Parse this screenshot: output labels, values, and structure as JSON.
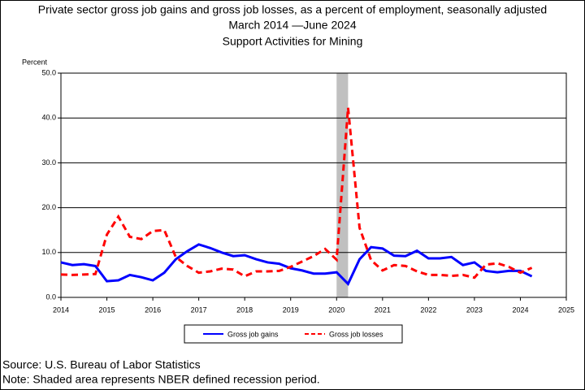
{
  "chart_data": {
    "type": "line",
    "title": "Private sector gross job gains and gross job losses, as a percent of employment, seasonally adjusted",
    "subtitle": "March 2014 —June 2024",
    "subtitle2": "Support Activities for Mining",
    "y_label": "Percent",
    "source": "Source: U.S. Bureau of Labor Statistics",
    "note": "Note: Shaded area represents NBER defined recession period.",
    "recession": [
      2020,
      2020.25
    ],
    "x": [
      2014,
      2014.25,
      2014.5,
      2014.75,
      2015,
      2015.25,
      2015.5,
      2015.75,
      2016,
      2016.25,
      2016.5,
      2016.75,
      2017,
      2017.25,
      2017.5,
      2017.75,
      2018,
      2018.25,
      2018.5,
      2018.75,
      2019,
      2019.25,
      2019.5,
      2019.75,
      2020,
      2020.25,
      2020.5,
      2020.75,
      2021,
      2021.25,
      2021.5,
      2021.75,
      2022,
      2022.25,
      2022.5,
      2022.75,
      2023,
      2023.25,
      2023.5,
      2023.75,
      2024,
      2024.25
    ],
    "series": [
      {
        "name": "Gross job gains",
        "color": "#0000ff",
        "dash": false,
        "values": [
          7.8,
          7.2,
          7.4,
          7.0,
          3.6,
          3.8,
          5.0,
          4.5,
          3.8,
          5.5,
          8.5,
          10.3,
          11.8,
          11.0,
          10.0,
          9.2,
          9.4,
          8.5,
          7.8,
          7.5,
          6.5,
          6.0,
          5.3,
          5.3,
          5.6,
          3.0,
          8.5,
          11.2,
          10.9,
          9.3,
          9.2,
          10.4,
          8.7,
          8.7,
          9.0,
          7.2,
          7.8,
          5.9,
          5.6,
          5.9,
          5.9,
          4.7
        ]
      },
      {
        "name": "Gross job losses",
        "color": "#ff0000",
        "dash": true,
        "values": [
          5.1,
          5.0,
          5.1,
          5.2,
          14.0,
          18.0,
          13.5,
          13.0,
          14.8,
          15.0,
          9.0,
          7.0,
          5.5,
          5.8,
          6.4,
          6.2,
          4.7,
          5.8,
          5.8,
          5.9,
          6.8,
          8.0,
          9.2,
          10.8,
          8.4,
          42.3,
          15.5,
          8.3,
          6.0,
          7.2,
          7.0,
          5.8,
          5.0,
          5.0,
          4.8,
          5.0,
          4.4,
          7.3,
          7.6,
          6.8,
          5.5,
          6.6
        ]
      }
    ],
    "xlim": [
      2014,
      2025
    ],
    "xticks": [
      2014,
      2015,
      2016,
      2017,
      2018,
      2019,
      2020,
      2021,
      2022,
      2023,
      2024,
      2025
    ],
    "ylim": [
      0,
      50
    ],
    "yticks": [
      {
        "value": 0,
        "label": "0.0"
      },
      {
        "value": 10,
        "label": "10.0"
      },
      {
        "value": 20,
        "label": "20.0"
      },
      {
        "value": 30,
        "label": "30.0"
      },
      {
        "value": 40,
        "label": "40.0"
      },
      {
        "value": 50,
        "label": "50.0"
      }
    ],
    "grid": true
  }
}
